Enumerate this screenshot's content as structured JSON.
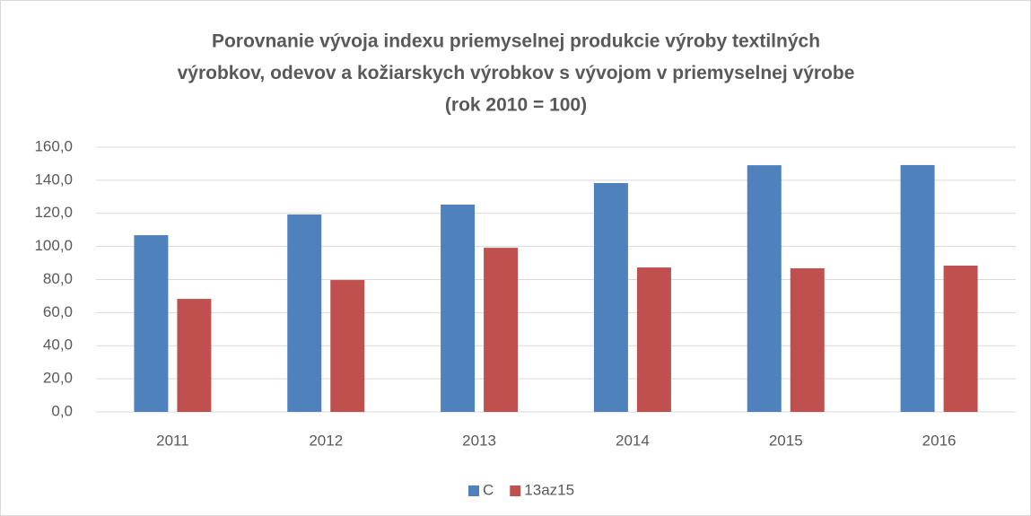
{
  "chart_data": {
    "type": "bar",
    "title": [
      "Porovnanie vývoja indexu priemyselnej produkcie výroby textilných",
      "výrobkov, odevov a kožiarskych výrobkov s vývojom v priemyselnej výrobe",
      "(rok 2010 = 100)"
    ],
    "categories": [
      "2011",
      "2012",
      "2013",
      "2014",
      "2015",
      "2016"
    ],
    "series": [
      {
        "name": "C",
        "color": "#4f81bd",
        "values": [
          106.8,
          119.3,
          125.3,
          138.3,
          149.1,
          149.2
        ]
      },
      {
        "name": "13az15",
        "color": "#c0504d",
        "values": [
          68.3,
          79.7,
          99.2,
          87.3,
          86.8,
          88.4
        ]
      }
    ],
    "ylim": [
      0,
      160
    ],
    "yticks": [
      {
        "value": 0,
        "label": "0,0"
      },
      {
        "value": 20,
        "label": "20,0"
      },
      {
        "value": 40,
        "label": "40,0"
      },
      {
        "value": 60,
        "label": "60,0"
      },
      {
        "value": 80,
        "label": "80,0"
      },
      {
        "value": 100,
        "label": "100,0"
      },
      {
        "value": 120,
        "label": "120,0"
      },
      {
        "value": 140,
        "label": "140,0"
      },
      {
        "value": 160,
        "label": "160,0"
      }
    ],
    "grid": true,
    "legend": "bottom"
  }
}
